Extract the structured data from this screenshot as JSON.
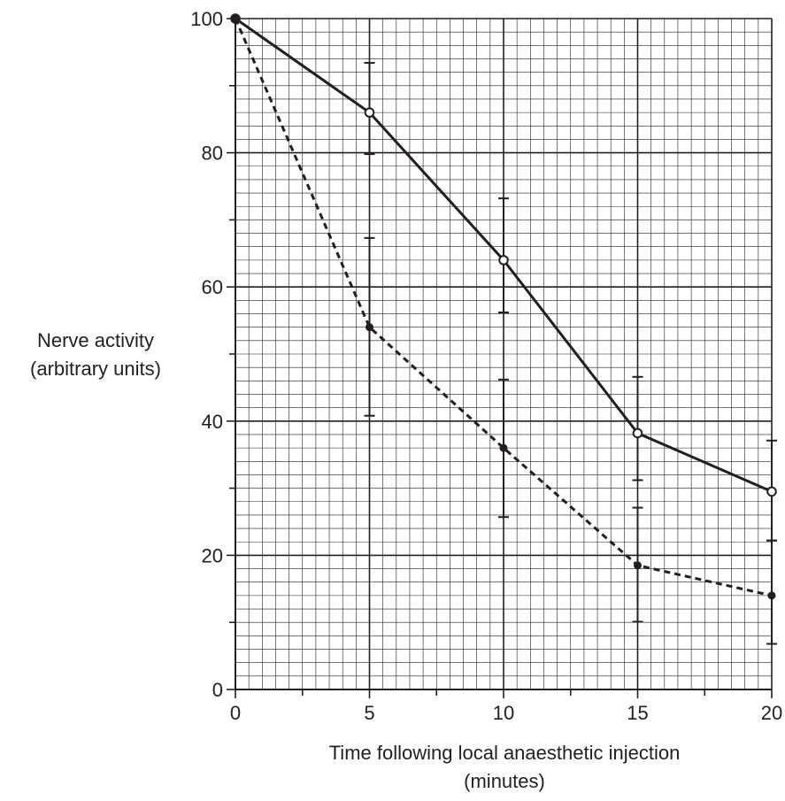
{
  "chart_data": {
    "type": "line",
    "xlabel": [
      "Time following local anaesthetic injection",
      "(minutes)"
    ],
    "ylabel": [
      "Nerve activity",
      "(arbitrary units)"
    ],
    "xlim": [
      0,
      20
    ],
    "ylim": [
      0,
      100
    ],
    "x_ticks": [
      0,
      5,
      10,
      15,
      20
    ],
    "y_ticks": [
      0,
      20,
      40,
      60,
      80,
      100
    ],
    "grid": true,
    "series": [
      {
        "line_style": "solid",
        "marker": "open-circle",
        "color": "#231f20",
        "points": [
          {
            "x": 0,
            "y": 100
          },
          {
            "x": 5,
            "y": 86,
            "err_low": 79.8,
            "err_high": 93.4
          },
          {
            "x": 10,
            "y": 64,
            "err_low": 56.2,
            "err_high": 73.2
          },
          {
            "x": 15,
            "y": 38.2,
            "err_low": 31.2,
            "err_high": 46.6
          },
          {
            "x": 20,
            "y": 29.5,
            "err_low": 22.2,
            "err_high": 37.1
          }
        ]
      },
      {
        "line_style": "dashed",
        "marker": "filled-circle",
        "color": "#231f20",
        "points": [
          {
            "x": 0,
            "y": 100
          },
          {
            "x": 5,
            "y": 54,
            "err_low": 40.8,
            "err_high": 67.3
          },
          {
            "x": 10,
            "y": 36,
            "err_low": 25.7,
            "err_high": 46.2
          },
          {
            "x": 15,
            "y": 18.5,
            "err_low": 10.1,
            "err_high": 27.1
          },
          {
            "x": 20,
            "y": 14,
            "err_low": 6.8,
            "err_high": 22.2
          }
        ]
      }
    ]
  }
}
